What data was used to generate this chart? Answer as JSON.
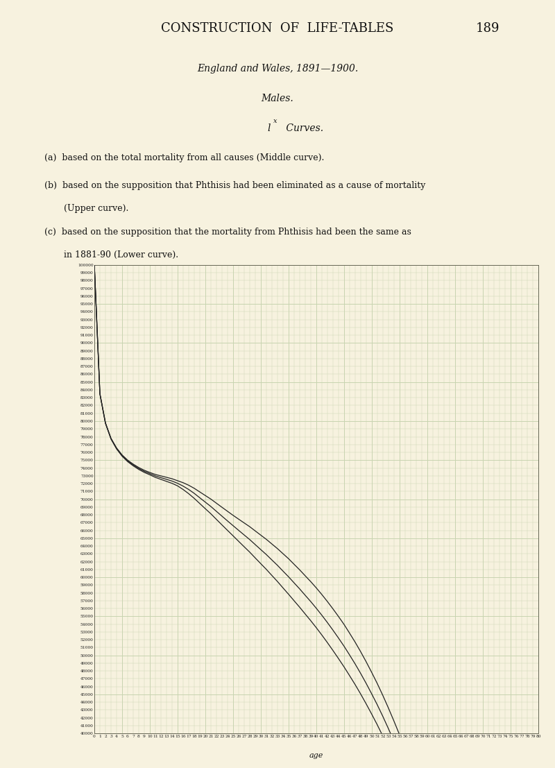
{
  "title_main": "CONSTRUCTION  OF  LIFE-TABLES",
  "title_page": "189",
  "subtitle1": "England and Wales, 1891—1900.",
  "subtitle2": "Males.",
  "subtitle3": "l",
  "subtitle3b": "x",
  "subtitle3c": " Curves.",
  "legend_a": "(a)  based on the total mortality from all causes (Middle curve).",
  "legend_b": "(b)  based on the supposition that Phthisis had been eliminated as a cause of mortality",
  "legend_b2": "       (Upper curve).",
  "legend_c": "(c)  based on the supposition that the mortality from Phthisis had been the same as",
  "legend_c2": "       in 1881-90 (Lower curve).",
  "paper_color": "#f7f2df",
  "grid_color_light": "#c8d4b0",
  "grid_color_heavy": "#a8b890",
  "line_color": "#222222",
  "y_min": 40000,
  "y_max": 100000,
  "y_tick_step": 1000,
  "x_min": 0,
  "x_max": 80,
  "x_tick_step": 1,
  "base_qx": [
    0.165,
    0.045,
    0.025,
    0.016,
    0.012,
    0.009,
    0.007,
    0.006,
    0.005,
    0.004,
    0.004,
    0.003,
    0.003,
    0.003,
    0.004,
    0.005,
    0.006,
    0.007,
    0.008,
    0.008,
    0.008,
    0.009,
    0.009,
    0.009,
    0.009,
    0.009,
    0.009,
    0.009,
    0.01,
    0.01,
    0.01,
    0.011,
    0.011,
    0.012,
    0.012,
    0.013,
    0.013,
    0.014,
    0.014,
    0.015,
    0.016,
    0.017,
    0.018,
    0.019,
    0.02,
    0.022,
    0.023,
    0.025,
    0.027,
    0.029,
    0.031,
    0.034,
    0.037,
    0.04,
    0.043,
    0.047,
    0.051,
    0.056,
    0.061,
    0.066,
    0.072,
    0.079,
    0.086,
    0.094,
    0.102,
    0.111,
    0.121,
    0.132,
    0.143,
    0.155,
    0.168,
    0.182,
    0.197,
    0.213,
    0.23,
    0.248,
    0.267,
    0.287,
    0.308,
    0.33
  ],
  "phthisis_qx": [
    0.0002,
    0.0002,
    0.0002,
    0.0002,
    0.0002,
    0.0002,
    0.0002,
    0.0002,
    0.0002,
    0.0002,
    0.0005,
    0.0005,
    0.0005,
    0.0005,
    0.0005,
    0.0015,
    0.0015,
    0.0015,
    0.0015,
    0.0015,
    0.0015,
    0.0015,
    0.0015,
    0.0015,
    0.0015,
    0.0018,
    0.0018,
    0.0018,
    0.0018,
    0.0018,
    0.0018,
    0.0018,
    0.0018,
    0.0018,
    0.0018,
    0.0015,
    0.0015,
    0.0015,
    0.0015,
    0.0015,
    0.0015,
    0.0015,
    0.0015,
    0.0015,
    0.0015,
    0.0012,
    0.0012,
    0.0012,
    0.0012,
    0.0012,
    0.0012,
    0.0012,
    0.0012,
    0.0012,
    0.0012,
    0.0008,
    0.0008,
    0.0008,
    0.0008,
    0.0008,
    0.0008,
    0.0008,
    0.0008,
    0.0008,
    0.0008,
    0.0005,
    0.0005,
    0.0005,
    0.0005,
    0.0005,
    0.0005,
    0.0005,
    0.0005,
    0.0005,
    0.0005,
    0.0005,
    0.0005,
    0.0005,
    0.0005,
    0.0005
  ]
}
